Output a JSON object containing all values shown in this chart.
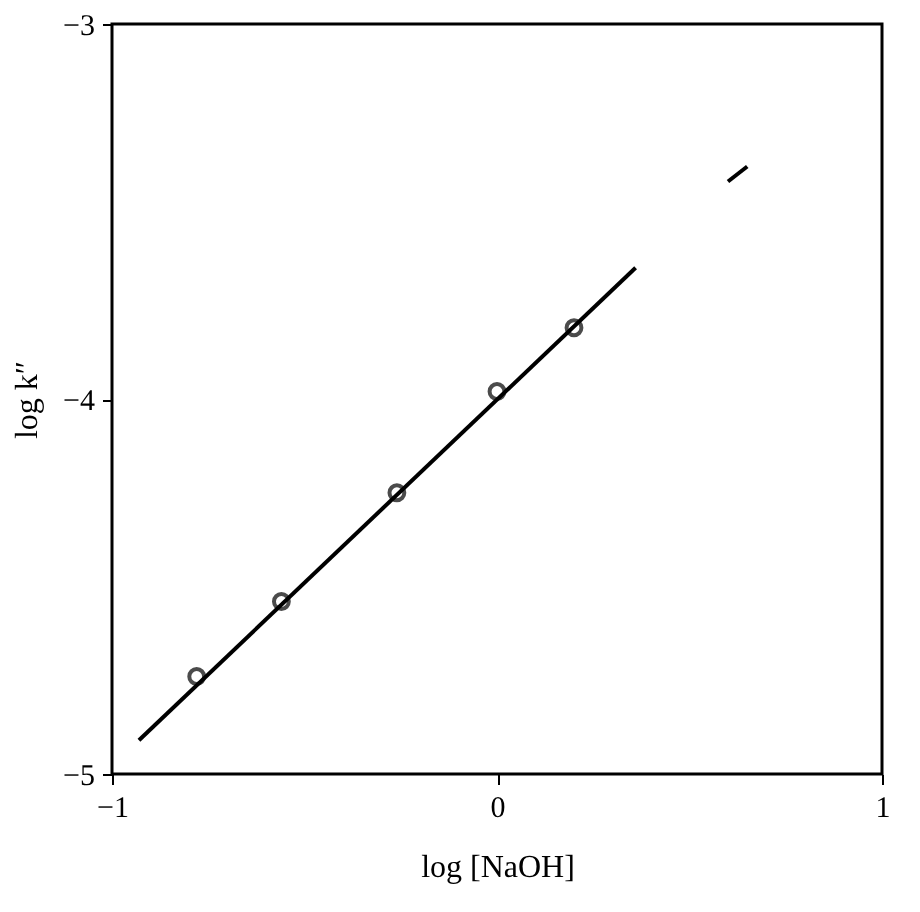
{
  "chart_data": {
    "type": "scatter",
    "xlabel": "log [NaOH]",
    "ylabel": "log k″",
    "xlim": [
      -1,
      1
    ],
    "ylim": [
      -5,
      -3
    ],
    "xticks": [
      -1,
      0,
      1
    ],
    "yticks": [
      -5,
      -4,
      -3
    ],
    "grid": false,
    "marker": "circle",
    "series": [
      {
        "color": "#000000",
        "x": [
          -0.78,
          -0.56,
          -0.26,
          0.0,
          0.2
        ],
        "values": [
          -4.74,
          -4.54,
          -4.25,
          -3.98,
          -3.81
        ]
      },
      {
        "type": "line",
        "marker": "none",
        "color": "#000000",
        "x": [
          -0.93,
          0.36
        ],
        "values": [
          -4.91,
          -3.65
        ]
      },
      {
        "type": "line",
        "marker": "none",
        "color": "#000000",
        "x": [
          0.6,
          0.65
        ],
        "values": [
          -3.42,
          -3.38
        ]
      }
    ]
  }
}
